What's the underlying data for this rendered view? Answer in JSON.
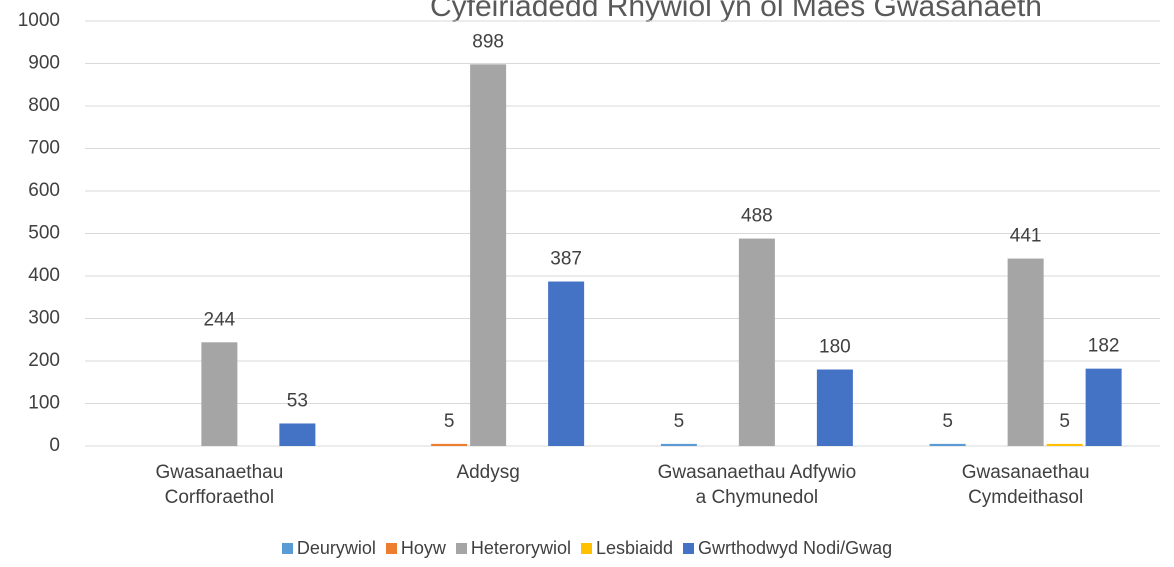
{
  "chart_data": {
    "type": "bar",
    "title": "Cyfeiriadedd Rhywiol yn ôl Maes Gwasanaeth",
    "categories": [
      [
        "Gwasanaethau",
        "Corfforaethol"
      ],
      [
        "Addysg"
      ],
      [
        "Gwasanaethau Adfywio",
        "a Chymunedol"
      ],
      [
        "Gwasanaethau",
        "Cymdeithasol"
      ]
    ],
    "series": [
      {
        "name": "Deurywiol",
        "color": "#5b9bd5",
        "values": [
          null,
          null,
          5,
          5
        ]
      },
      {
        "name": "Hoyw",
        "color": "#ed7d31",
        "values": [
          null,
          5,
          null,
          null
        ]
      },
      {
        "name": "Heterorywiol",
        "color": "#a5a5a5",
        "values": [
          244,
          898,
          488,
          441
        ]
      },
      {
        "name": "Lesbiaidd",
        "color": "#ffc000",
        "values": [
          null,
          null,
          null,
          5
        ]
      },
      {
        "name": "Gwrthodwyd Nodi/Gwag",
        "color": "#4472c4",
        "values": [
          53,
          387,
          180,
          182
        ]
      }
    ],
    "ylim": [
      0,
      1000
    ],
    "yticks": [
      0,
      100,
      200,
      300,
      400,
      500,
      600,
      700,
      800,
      900,
      1000
    ],
    "grid": true,
    "legend": "bottom"
  }
}
